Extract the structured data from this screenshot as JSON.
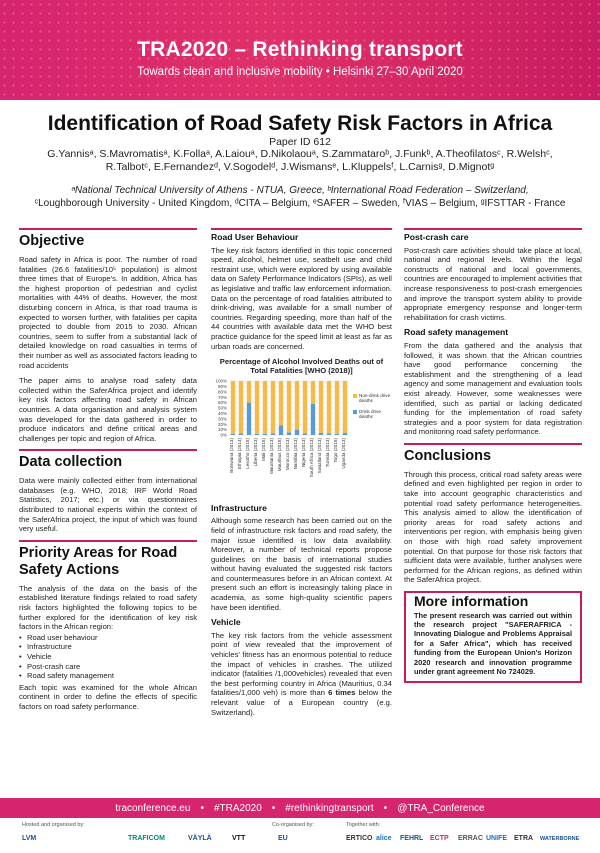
{
  "banner": {
    "title": "TRA2020 – Rethinking transport",
    "subtitle": "Towards clean and inclusive mobility  •  Helsinki 27–30 April 2020"
  },
  "paper": {
    "title": "Identification of Road Safety Risk Factors in Africa",
    "paper_id": "Paper ID 612",
    "authors_line1": "G.Yannisᵃ, S.Mavromatisᵃ, K.Follaᵃ, A.Laiouᵃ, D.Nikolaouᵃ, S.Zammataroᵇ, J.Funkᵇ, A.Theofilatosᶜ, R.Welshᶜ,",
    "authors_line2": "R.Talbotᶜ, E.Fernandezᵈ, V.Sogodelᵈ, J.Wismansᵉ, L.Kluppelsᶠ, L.Carnisᵍ, D.Mignotᵍ",
    "affil_line1": "ᵃNational Technical University of Athens - NTUA, Greece, ᵇInternational Road Federation – Switzerland,",
    "affil_line2": "ᶜLoughborough University - United Kingdom, ᵈCITA – Belgium, ᵉSAFER – Sweden, ᶠVIAS – Belgium, ᵍIFSTTAR - France"
  },
  "col1": {
    "objective_h": "Objective",
    "objective_p1": "Road safety in Africa is poor. The number of road fatalities (26.6 fatalities/10⁵ population) is almost three times that of Europe's. In addition, Africa has the highest proportion of pedestrian and cyclist mortalities with 44% of deaths. However, the most disturbing concern in Africa, is that road trauma is expected to worsen further, with fatalities per capita projected to double from 2015 to 2030. African countries, seem to suffer from a substantial lack of detailed knowledge on road casualties in terms of their number as well as associated factors leading to road accidents",
    "objective_p2": "The paper aims to analyse road safety data collected within the SaferAfrica project and identify key risk factors affecting road safety in African countries. A data organisation and analysis system was developed for the data gathered in order to produce indicators and define critical areas and challenges per topic and region of Africa.",
    "data_h": "Data collection",
    "data_p": "Data were mainly collected either from international databases (e.g. WHO, 2018; IRF World Road Statistics, 2017; etc.) or via questionnaires distributed to national experts within the context of the SaferAfrica project, the input of which was found very useful.",
    "priority_h": "Priority Areas for Road Safety Actions",
    "priority_p": "The analysis of the data on the basis of the established literature findings related to road safety risk factors highlighted the following topics to be further explored for the identification of key risk factors in the African region:",
    "priority_items": [
      "Road user behaviour",
      "Infrastructure",
      "Vehicle",
      "Post-crash care",
      "Road safety management"
    ],
    "priority_p2": "Each topic was examined for the whole African continent in order to define the effects of specific factors on road safety performance."
  },
  "col2": {
    "rub_h": "Road User Behaviour",
    "rub_p": "The key risk factors identified in this topic concerned speed, alcohol, helmet use, seatbelt use and child restraint use, which were explored by using available data on Safety Performance Indicators (SPIs), as well as legislative and traffic law enforcement information. Data on the percentage of road fatalities attributed to drink-driving, was available for a small number of countries. Regarding speeding, more than half of the 44 countries with available data met the WHO best practice guidance for the speed limit at least as far as urban roads are concerned.",
    "infra_h": "Infrastructure",
    "infra_p": "Although some research has been carried out on the field of infrastructure risk factors and road safety, the major issue identified is low data availability. Moreover, a number of technical reports propose guidelines on the basis of international studies without having evaluated the suggested risk factors and countermeasures before in an African context. At present such an effort is increasingly taking place in academia, as some high-quality scientific papers have been identified.",
    "vehicle_h": "Vehicle",
    "vehicle_p_a": "The key risk factors from the vehicle assessment point of view revealed that the improvement of vehicles' fitness has an enormous potential to reduce the impact of vehicles in crashes. The utilized indicator (fatalities /1,000vehicles) revealed that even the best performing country in Africa (Mauritius, 0.34 fatalities/1,000 veh) is more than ",
    "vehicle_p_bold": "6 times",
    "vehicle_p_b": " below the relevant value of a European country (e.g. Switzerland)."
  },
  "col3": {
    "pcc_h": "Post-crash care",
    "pcc_p": "Post-crash care activities should take place at local, national and regional levels. Within the legal constructs of national and local governments, countries are encouraged to implement activities that increase responsiveness to post-crash emergencies and improve the transport system ability to provide appropriate emergency response and longer-term rehabilitation for crash victims.",
    "rsm_h": "Road safety management",
    "rsm_p": "From the data gathered and the analysis that followed, it was shown that the African countries have good performance concerning the establishment and the strengthening of a lead agency and some management and evaluation tools exist already. However, some weaknesses were identified, such as partial or lacking dedicated funding for the implementation of road safety strategies and a poor system for data registration and monitoring road safety performance.",
    "concl_h": "Conclusions",
    "concl_p": "Through this process, critical road safety areas were defined and even highlighted per region in order to take into account geographic characteristics and potential road safety performance heterogeneities. This analysis aimed to allow the identification of priority areas for road safety actions and interventions per region, with emphasis being given on those with high road safety improvement potential. On that purpose for those risk factors that sufficient data were available, further analyses were performed for the African regions, as defined within the SaferAfrica project.",
    "more_h": "More information",
    "more_p": "The present research was carried out within the research project \"SAFERAFRICA - Innovating Dialogue and Problems Appraisal for a Safer Africa\", which has received funding from the European Union's Horizon 2020 research and innovation programme under grant agreement No 724029."
  },
  "chart_data": {
    "type": "bar",
    "stacked": true,
    "title": "Percentage of Alcohol Involved Deaths out of Total Fatalities [WHO (2018)]",
    "categories": [
      "Botswana (2013)",
      "Ethiopia (2014)",
      "Lesotho (2015)",
      "Liberia (2013)",
      "Mali (2015)",
      "Mauritania (2013)",
      "Mauritius (2015)",
      "Morocco (2013)",
      "Namibia (2013)",
      "Nigeria (2013)",
      "South Africa (2013)",
      "Swaziland (2013)",
      "Tunisia (2013)",
      "Togo (2015)",
      "Uganda (2013)"
    ],
    "series": [
      {
        "name": "Drink-drive deaths",
        "color": "#5b9bd5",
        "values": [
          2,
          3,
          60,
          2,
          2,
          3,
          18,
          5,
          10,
          3,
          58,
          4,
          3,
          2,
          4
        ]
      },
      {
        "name": "Non-drink drive deaths",
        "color": "#f7b94a",
        "values": [
          98,
          97,
          40,
          98,
          98,
          97,
          82,
          95,
          90,
          97,
          42,
          96,
          97,
          98,
          96
        ]
      }
    ],
    "legend_names": [
      "Non-drink drive deaths",
      "Drink drive deaths"
    ],
    "y_ticks": [
      "0%",
      "10%",
      "20%",
      "30%",
      "40%",
      "50%",
      "60%",
      "70%",
      "80%",
      "90%",
      "100%"
    ],
    "ylim": [
      0,
      100
    ],
    "legend_position": "right"
  },
  "footer": {
    "items": [
      "traconference.eu",
      "#TRA2020",
      "#rethinkingtransport",
      "@TRA_Conference"
    ],
    "hosted_label": "Hosted and organised by:",
    "coorg_label": "Co-organised by:",
    "together_label": "Together with:",
    "logos": [
      "LVM",
      "TRAFICOM",
      "VÄYLÄ",
      "VTT",
      "EU",
      "ERTICO",
      "alice",
      "FEHRL",
      "ECTP",
      "ERRAC",
      "UNIFE",
      "ETRA",
      "WATERBORNE"
    ]
  }
}
